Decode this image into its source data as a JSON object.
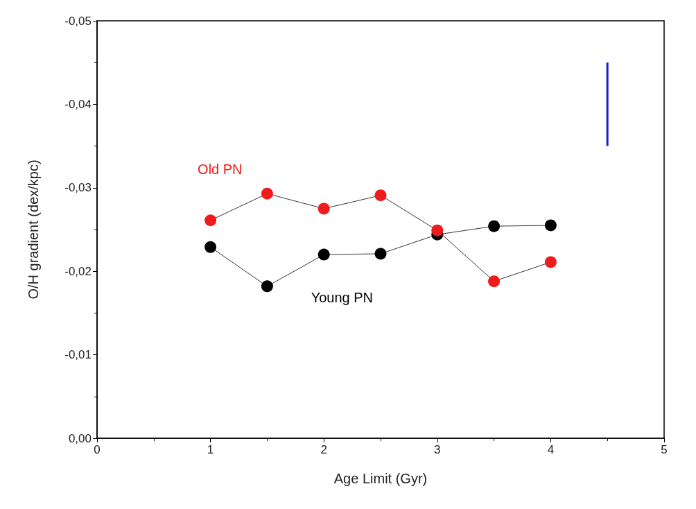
{
  "chart_data": {
    "type": "line",
    "xlabel": "Age Limit (Gyr)",
    "ylabel": "O/H gradient (dex/kpc)",
    "xlim": [
      0,
      5
    ],
    "xticks": [
      0,
      1,
      2,
      3,
      4,
      5
    ],
    "ylim": [
      0,
      -0.05
    ],
    "yticks": [
      {
        "value": 0,
        "label": "0,00"
      },
      {
        "value": -0.01,
        "label": "-0,01"
      },
      {
        "value": -0.02,
        "label": "-0,02"
      },
      {
        "value": -0.03,
        "label": "-0,03"
      },
      {
        "value": -0.04,
        "label": "-0,04"
      },
      {
        "value": -0.05,
        "label": "-0,05"
      }
    ],
    "grid": false,
    "legend": false,
    "marker": "circle",
    "line_style": "solid",
    "series": [
      {
        "name": "Old PN",
        "color": "#ee1c1c",
        "x": [
          1,
          1.5,
          2,
          2.5,
          3,
          3.5,
          4
        ],
        "values": [
          -0.0261,
          -0.0293,
          -0.0275,
          -0.0291,
          -0.0249,
          -0.0188,
          -0.0211
        ]
      },
      {
        "name": "Young PN",
        "color": "#000000",
        "x": [
          1,
          1.5,
          2,
          2.5,
          3,
          3.5,
          4
        ],
        "values": [
          -0.0229,
          -0.0182,
          -0.022,
          -0.0221,
          -0.0244,
          -0.0254,
          -0.0255
        ]
      },
      {
        "marker": "none",
        "color": "#1a1ad0",
        "x": [
          4.5,
          4.5
        ],
        "values": [
          -0.035,
          -0.045
        ]
      }
    ]
  }
}
